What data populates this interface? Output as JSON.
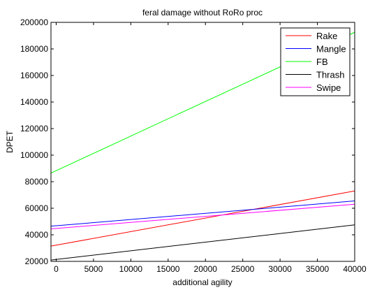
{
  "chart_data": {
    "type": "line",
    "title": "feral damage without RoRo proc",
    "xlabel": "additional agility",
    "ylabel": "DPET",
    "xlim": [
      -700,
      40000
    ],
    "ylim": [
      20000,
      200000
    ],
    "xticks": [
      0,
      5000,
      10000,
      15000,
      20000,
      25000,
      30000,
      35000,
      40000
    ],
    "yticks": [
      20000,
      40000,
      60000,
      80000,
      100000,
      120000,
      140000,
      160000,
      180000,
      200000
    ],
    "grid": false,
    "legend_position": "top-right",
    "series": [
      {
        "name": "Rake",
        "color": "#ff0000",
        "x": [
          -700,
          40000
        ],
        "y": [
          31500,
          73000
        ]
      },
      {
        "name": "Mangle",
        "color": "#0000ff",
        "x": [
          -700,
          40000
        ],
        "y": [
          46500,
          65500
        ]
      },
      {
        "name": "FB",
        "color": "#00ff00",
        "x": [
          -700,
          40000
        ],
        "y": [
          86500,
          192500
        ]
      },
      {
        "name": "Thrash",
        "color": "#000000",
        "x": [
          -700,
          40000
        ],
        "y": [
          21000,
          47500
        ]
      },
      {
        "name": "Swipe",
        "color": "#ff00ff",
        "x": [
          -700,
          40000
        ],
        "y": [
          44500,
          63000
        ]
      }
    ]
  }
}
